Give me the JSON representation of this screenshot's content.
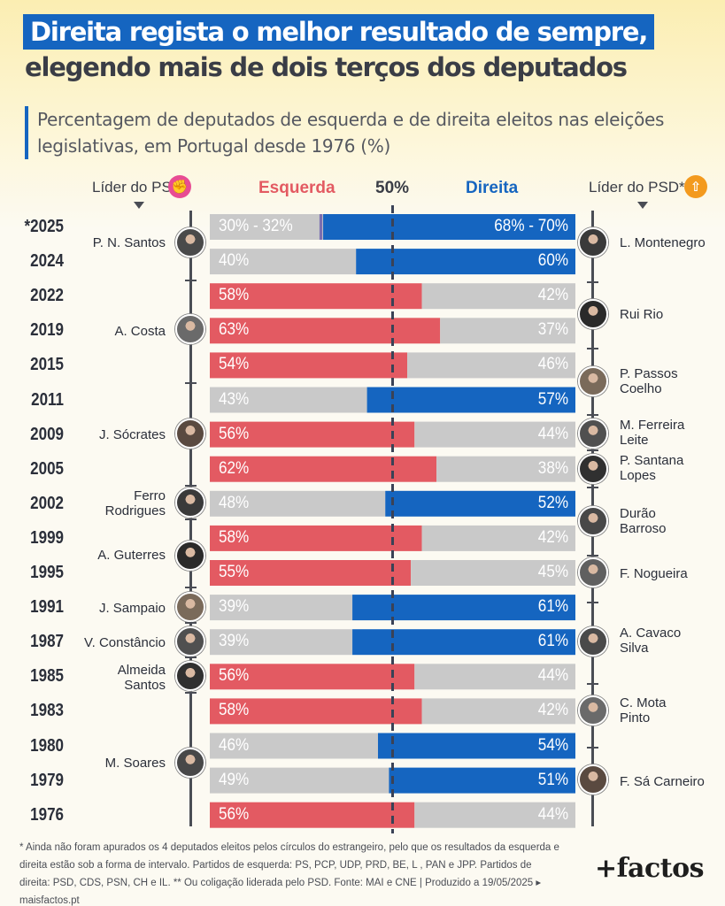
{
  "title": {
    "line1": "Direita regista o melhor resultado de sempre,",
    "line2": "elegendo mais de dois terços dos deputados"
  },
  "subtitle": "Percentagem de deputados de esquerda e de direita eleitos nas eleições legislativas, em Portugal desde 1976 (%)",
  "columns": {
    "ps_leader": "Líder do PS",
    "left": "Esquerda",
    "middle": "50%",
    "right": "Direita",
    "psd_leader": "Líder do PSD**"
  },
  "colors": {
    "left": "#e35a62",
    "right": "#1565c0",
    "gray": "#c9c9c9",
    "ps_icon": "#e84c93",
    "psd_icon": "#f39a1e"
  },
  "icons": {
    "ps": "fist-rose-icon",
    "psd": "arrow-up-icon"
  },
  "ps_leaders": [
    {
      "name": "P. N. Santos"
    },
    {
      "name": "A. Costa"
    },
    {
      "name": "J. Sócrates"
    },
    {
      "name": "Ferro\nRodrigues"
    },
    {
      "name": "A. Guterres"
    },
    {
      "name": "J. Sampaio"
    },
    {
      "name": "V. Constâncio"
    },
    {
      "name": "Almeida\nSantos"
    },
    {
      "name": "M. Soares"
    }
  ],
  "psd_leaders": [
    {
      "name": "L. Montenegro"
    },
    {
      "name": "Rui Rio"
    },
    {
      "name": "P. Passos\nCoelho"
    },
    {
      "name": "M. Ferreira\nLeite"
    },
    {
      "name": "P. Santana\nLopes"
    },
    {
      "name": "Durão\nBarroso"
    },
    {
      "name": "F. Nogueira"
    },
    {
      "name": "A. Cavaco\nSilva"
    },
    {
      "name": "C. Mota\nPinto"
    },
    {
      "name": "F. Sá Carneiro"
    }
  ],
  "chart_data": {
    "type": "bar",
    "orientation": "horizontal",
    "stacked": true,
    "xlim": [
      0,
      100
    ],
    "reference_line": 50,
    "categories": [
      "*2025",
      "2024",
      "2022",
      "2019",
      "2015",
      "2011",
      "2009",
      "2005",
      "2002",
      "1999",
      "1995",
      "1991",
      "1987",
      "1985",
      "1983",
      "1980",
      "1979",
      "1976"
    ],
    "series": [
      {
        "name": "Esquerda",
        "values": [
          31,
          40,
          58,
          63,
          54,
          43,
          56,
          62,
          48,
          58,
          55,
          39,
          39,
          56,
          58,
          46,
          49,
          56
        ]
      },
      {
        "name": "Direita",
        "values": [
          69,
          60,
          42,
          37,
          46,
          57,
          44,
          38,
          52,
          42,
          45,
          61,
          61,
          44,
          42,
          54,
          51,
          44
        ]
      }
    ],
    "winner": [
      "right",
      "right",
      "left",
      "left",
      "left",
      "right",
      "left",
      "left",
      "right",
      "left",
      "left",
      "right",
      "right",
      "left",
      "left",
      "right",
      "right",
      "left"
    ],
    "left_labels": [
      "30% - 32%",
      "40%",
      "58%",
      "63%",
      "54%",
      "43%",
      "56%",
      "62%",
      "48%",
      "58%",
      "55%",
      "39%",
      "39%",
      "56%",
      "58%",
      "46%",
      "49%",
      "56%"
    ],
    "right_labels": [
      "68% - 70%",
      "60%",
      "42%",
      "37%",
      "46%",
      "57%",
      "44%",
      "38%",
      "52%",
      "42%",
      "45%",
      "61%",
      "61%",
      "44%",
      "42%",
      "54%",
      "51%",
      "44%"
    ]
  },
  "footnote": "* Ainda não foram apurados os 4 deputados eleitos pelos círculos do estrangeiro, pelo que os resultados da esquerda e direita estão sob a forma de intervalo. Partidos de esquerda: PS, PCP, UDP, PRD, BE, L , PAN e JPP. Partidos de direita: PSD, CDS, PSN, CH e IL. ** Ou coligação liderada pelo PSD. Fonte: MAI e CNE | Produzido a 19/05/2025 ▸ maisfactos.pt",
  "brand": "+factos"
}
